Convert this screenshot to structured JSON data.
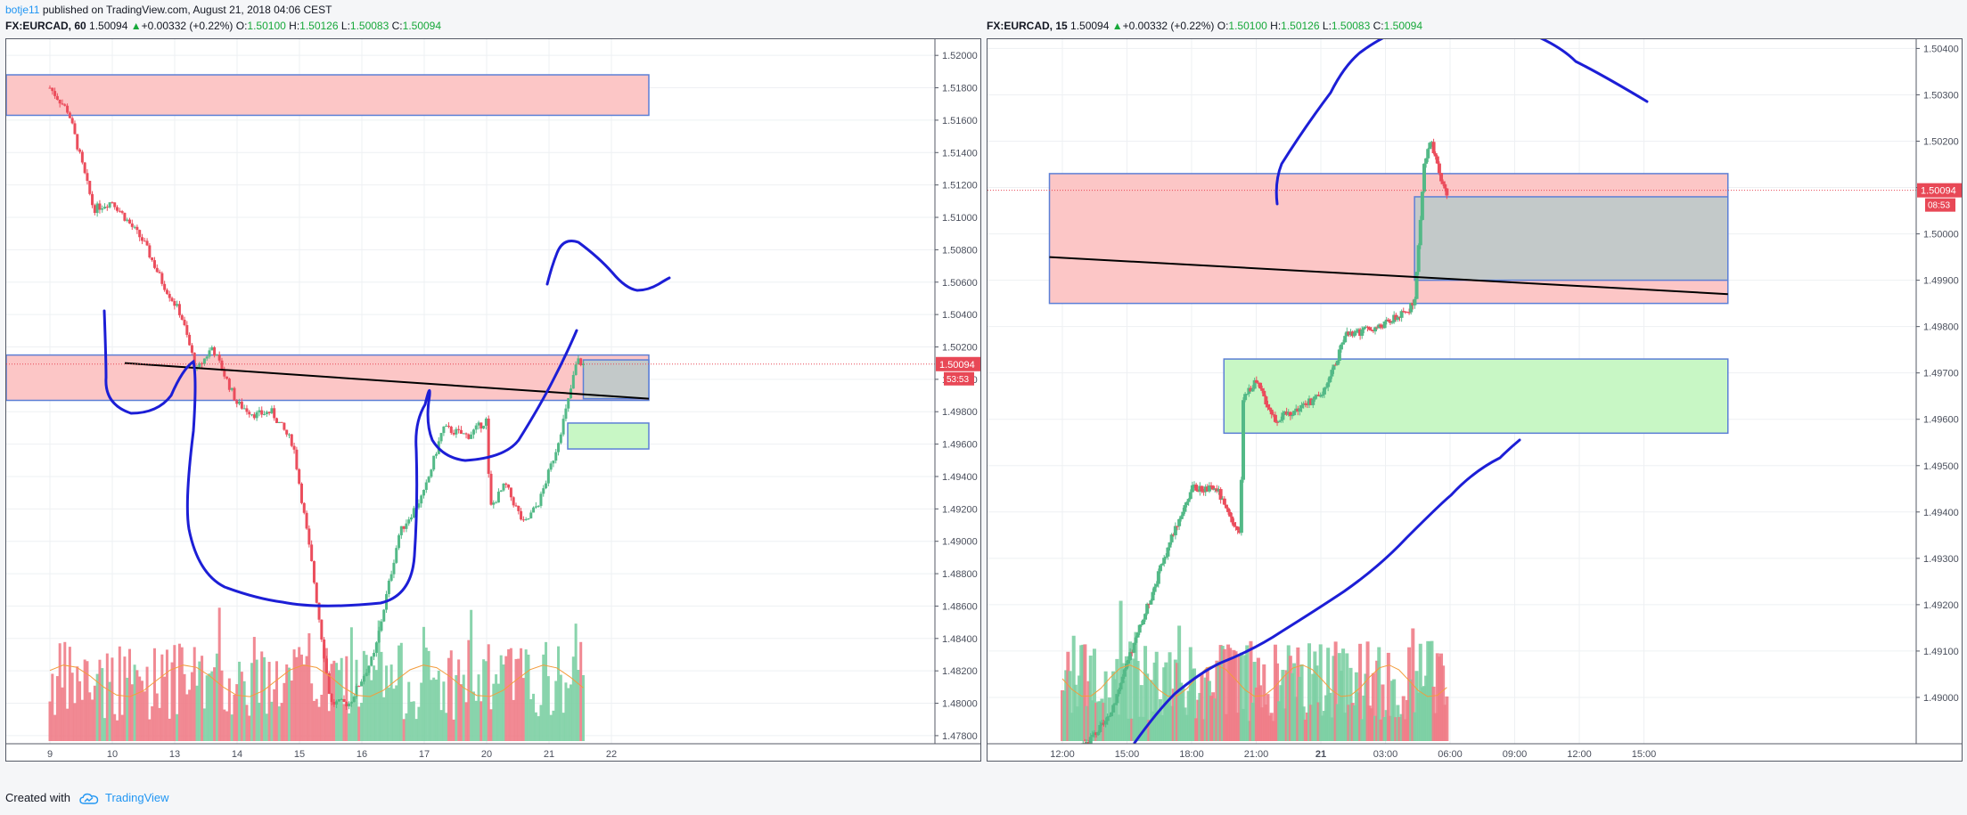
{
  "header": {
    "publisher": "botje11",
    "published_text": " published on TradingView.com, August 21, 2018 04:06 CEST"
  },
  "left_header": {
    "symbol": "FX:EURCAD, 60",
    "last": "1.50094",
    "change": "+0.00332 (+0.22%)",
    "o_label": "O:",
    "o": "1.50100",
    "h_label": "H:",
    "h": "1.50126",
    "l_label": "L:",
    "l": "1.50083",
    "c_label": "C:",
    "c": "1.50094"
  },
  "right_header": {
    "symbol": "FX:EURCAD, 15",
    "last": "1.50094",
    "change": "+0.00332 (+0.22%)",
    "o_label": "O:",
    "o": "1.50100",
    "h_label": "H:",
    "h": "1.50126",
    "l_label": "L:",
    "l": "1.50083",
    "c_label": "C:",
    "c": "1.50094"
  },
  "footer": {
    "created_with": "Created with",
    "brand": "TradingView"
  },
  "colors": {
    "up": "#53b987",
    "down": "#eb4d5c",
    "vol_up": "#7ccfa3",
    "vol_down": "#f07c87",
    "red_zone": "#fcc6c6",
    "green_zone": "#c8f7c5",
    "grey_zone": "#b9c9c9",
    "zone_border": "#5c7fd6",
    "drawing": "#1c1ed6",
    "ma": "#f39c3c",
    "price_tag": "#e84856"
  },
  "chart_data": [
    {
      "type": "candlestick",
      "symbol": "FX:EURCAD",
      "interval": "60",
      "x_tick_labels": [
        "9",
        "10",
        "13",
        "14",
        "15",
        "16",
        "17",
        "20",
        "21",
        "22"
      ],
      "y_tick_labels": [
        "1.52000",
        "1.51800",
        "1.51600",
        "1.51400",
        "1.51200",
        "1.51000",
        "1.50800",
        "1.50600",
        "1.50400",
        "1.50200",
        "1.50000",
        "1.49800",
        "1.49600",
        "1.49400",
        "1.49200",
        "1.49000",
        "1.48800",
        "1.48600",
        "1.48400",
        "1.48200",
        "1.48000",
        "1.47800"
      ],
      "ylim": [
        1.4775,
        1.521
      ],
      "current_price_label": "1.50094",
      "countdown_label": "53:53",
      "close_path": [
        {
          "t": 0.0,
          "p": 1.518
        },
        {
          "t": 0.3,
          "p": 1.5165
        },
        {
          "t": 0.7,
          "p": 1.5105
        },
        {
          "t": 1.0,
          "p": 1.511
        },
        {
          "t": 1.5,
          "p": 1.5085
        },
        {
          "t": 1.8,
          "p": 1.506
        },
        {
          "t": 2.1,
          "p": 1.504
        },
        {
          "t": 2.35,
          "p": 1.5005
        },
        {
          "t": 2.6,
          "p": 1.502
        },
        {
          "t": 3.0,
          "p": 1.4985
        },
        {
          "t": 3.3,
          "p": 1.4978
        },
        {
          "t": 3.55,
          "p": 1.498
        },
        {
          "t": 3.9,
          "p": 1.496
        },
        {
          "t": 4.2,
          "p": 1.4885
        },
        {
          "t": 4.5,
          "p": 1.48
        },
        {
          "t": 4.8,
          "p": 1.48
        },
        {
          "t": 5.2,
          "p": 1.483
        },
        {
          "t": 5.6,
          "p": 1.4905
        },
        {
          "t": 6.0,
          "p": 1.493
        },
        {
          "t": 6.3,
          "p": 1.497
        },
        {
          "t": 6.7,
          "p": 1.4965
        },
        {
          "t": 7.0,
          "p": 1.4975
        },
        {
          "t": 7.05,
          "p": 1.492
        },
        {
          "t": 7.3,
          "p": 1.4935
        },
        {
          "t": 7.6,
          "p": 1.491
        },
        {
          "t": 7.85,
          "p": 1.4925
        },
        {
          "t": 8.1,
          "p": 1.4955
        },
        {
          "t": 8.3,
          "p": 1.4985
        },
        {
          "t": 8.45,
          "p": 1.5012
        },
        {
          "t": 8.55,
          "p": 1.5009
        }
      ],
      "zones": [
        {
          "kind": "resistance",
          "t0": -0.8,
          "t1": 9.6,
          "p_top": 1.5188,
          "p_bottom": 1.5163
        },
        {
          "kind": "resistance",
          "t0": -0.8,
          "t1": 9.6,
          "p_top": 1.5015,
          "p_bottom": 1.4987
        },
        {
          "kind": "projection",
          "t0": 8.55,
          "t1": 9.6,
          "p_top": 1.5012,
          "p_bottom": 1.4988
        },
        {
          "kind": "support",
          "t0": 8.3,
          "t1": 9.6,
          "p_top": 1.4973,
          "p_bottom": 1.4957
        }
      ],
      "trendline": {
        "t0": 1.2,
        "p0": 1.501,
        "t1": 9.6,
        "p1": 1.4988
      }
    },
    {
      "type": "candlestick",
      "symbol": "FX:EURCAD",
      "interval": "15",
      "x_tick_labels": [
        "12:00",
        "15:00",
        "18:00",
        "21:00",
        "21",
        "03:00",
        "06:00",
        "09:00",
        "12:00",
        "15:00"
      ],
      "y_tick_labels": [
        "1.50400",
        "1.50300",
        "1.50200",
        "1.50100",
        "1.50000",
        "1.49900",
        "1.49800",
        "1.49700",
        "1.49600",
        "1.49500",
        "1.49400",
        "1.49300",
        "1.49200",
        "1.49100",
        "1.49000"
      ],
      "ylim": [
        1.489,
        1.5042
      ],
      "current_price_label": "1.50094",
      "countdown_label": "08:53",
      "close_path": [
        {
          "t": 0.0,
          "p": 1.4885
        },
        {
          "t": 0.7,
          "p": 1.4895
        },
        {
          "t": 1.2,
          "p": 1.4915
        },
        {
          "t": 1.7,
          "p": 1.4935
        },
        {
          "t": 2.0,
          "p": 1.4945
        },
        {
          "t": 2.4,
          "p": 1.4945
        },
        {
          "t": 2.6,
          "p": 1.4938
        },
        {
          "t": 2.75,
          "p": 1.4935
        },
        {
          "t": 2.8,
          "p": 1.4965
        },
        {
          "t": 3.0,
          "p": 1.4968
        },
        {
          "t": 3.3,
          "p": 1.496
        },
        {
          "t": 3.6,
          "p": 1.4962
        },
        {
          "t": 4.0,
          "p": 1.4965
        },
        {
          "t": 4.4,
          "p": 1.4978
        },
        {
          "t": 4.9,
          "p": 1.498
        },
        {
          "t": 5.3,
          "p": 1.4983
        },
        {
          "t": 5.45,
          "p": 1.4985
        },
        {
          "t": 5.6,
          "p": 1.5015
        },
        {
          "t": 5.7,
          "p": 1.502
        },
        {
          "t": 5.85,
          "p": 1.5012
        },
        {
          "t": 5.95,
          "p": 1.5009
        }
      ],
      "zones": [
        {
          "kind": "resistance",
          "t0": -0.2,
          "t1": 10.3,
          "p_top": 1.5013,
          "p_bottom": 1.4985
        },
        {
          "kind": "projection",
          "t0": 5.45,
          "t1": 10.3,
          "p_top": 1.5008,
          "p_bottom": 1.499
        },
        {
          "kind": "support",
          "t0": 2.5,
          "t1": 10.3,
          "p_top": 1.4973,
          "p_bottom": 1.4957
        }
      ],
      "trendline": {
        "t0": -0.2,
        "p0": 1.4995,
        "t1": 10.3,
        "p1": 1.4987
      }
    }
  ]
}
